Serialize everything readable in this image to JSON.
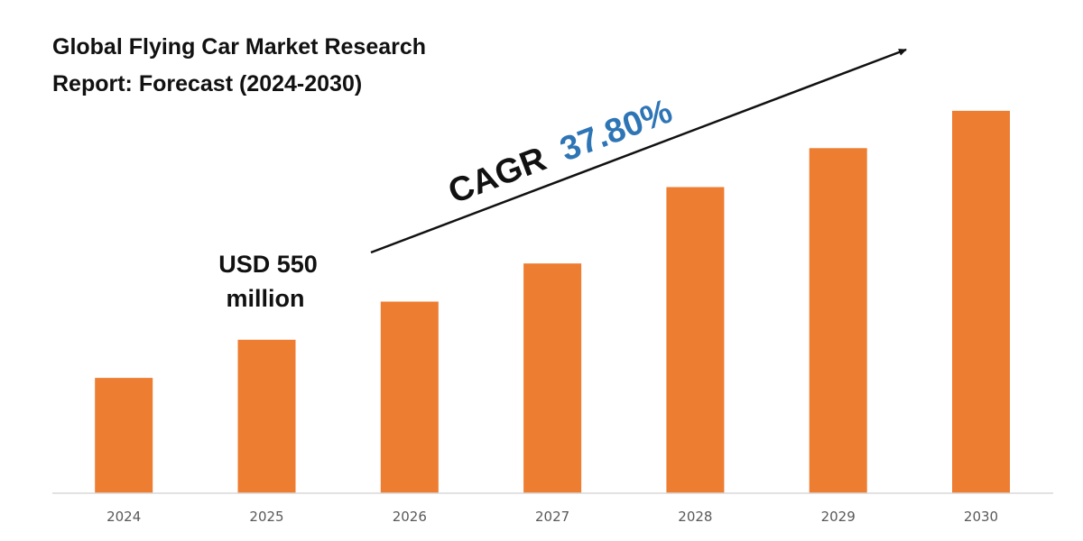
{
  "chart_data": {
    "type": "bar",
    "title_lines": [
      "Global Flying Car Market Research",
      "Report: Forecast (2024-2030)"
    ],
    "categories": [
      "2024",
      "2025",
      "2026",
      "2027",
      "2028",
      "2029",
      "2030"
    ],
    "values": [
      139,
      185,
      231,
      277,
      369,
      416,
      461
    ],
    "ylim": [
      0,
      500
    ],
    "xlabel": "",
    "ylabel": "",
    "grid": false,
    "annotations": {
      "value_label_lines": [
        "USD 550",
        "million"
      ],
      "cagr_prefix": "CAGR",
      "cagr_value": "37.80%"
    }
  },
  "colors": {
    "bar": "#ED7D31",
    "cagr_value": "#2E75B6",
    "text": "#111111",
    "axis": "#D9D9D9",
    "tick": "#595959"
  }
}
